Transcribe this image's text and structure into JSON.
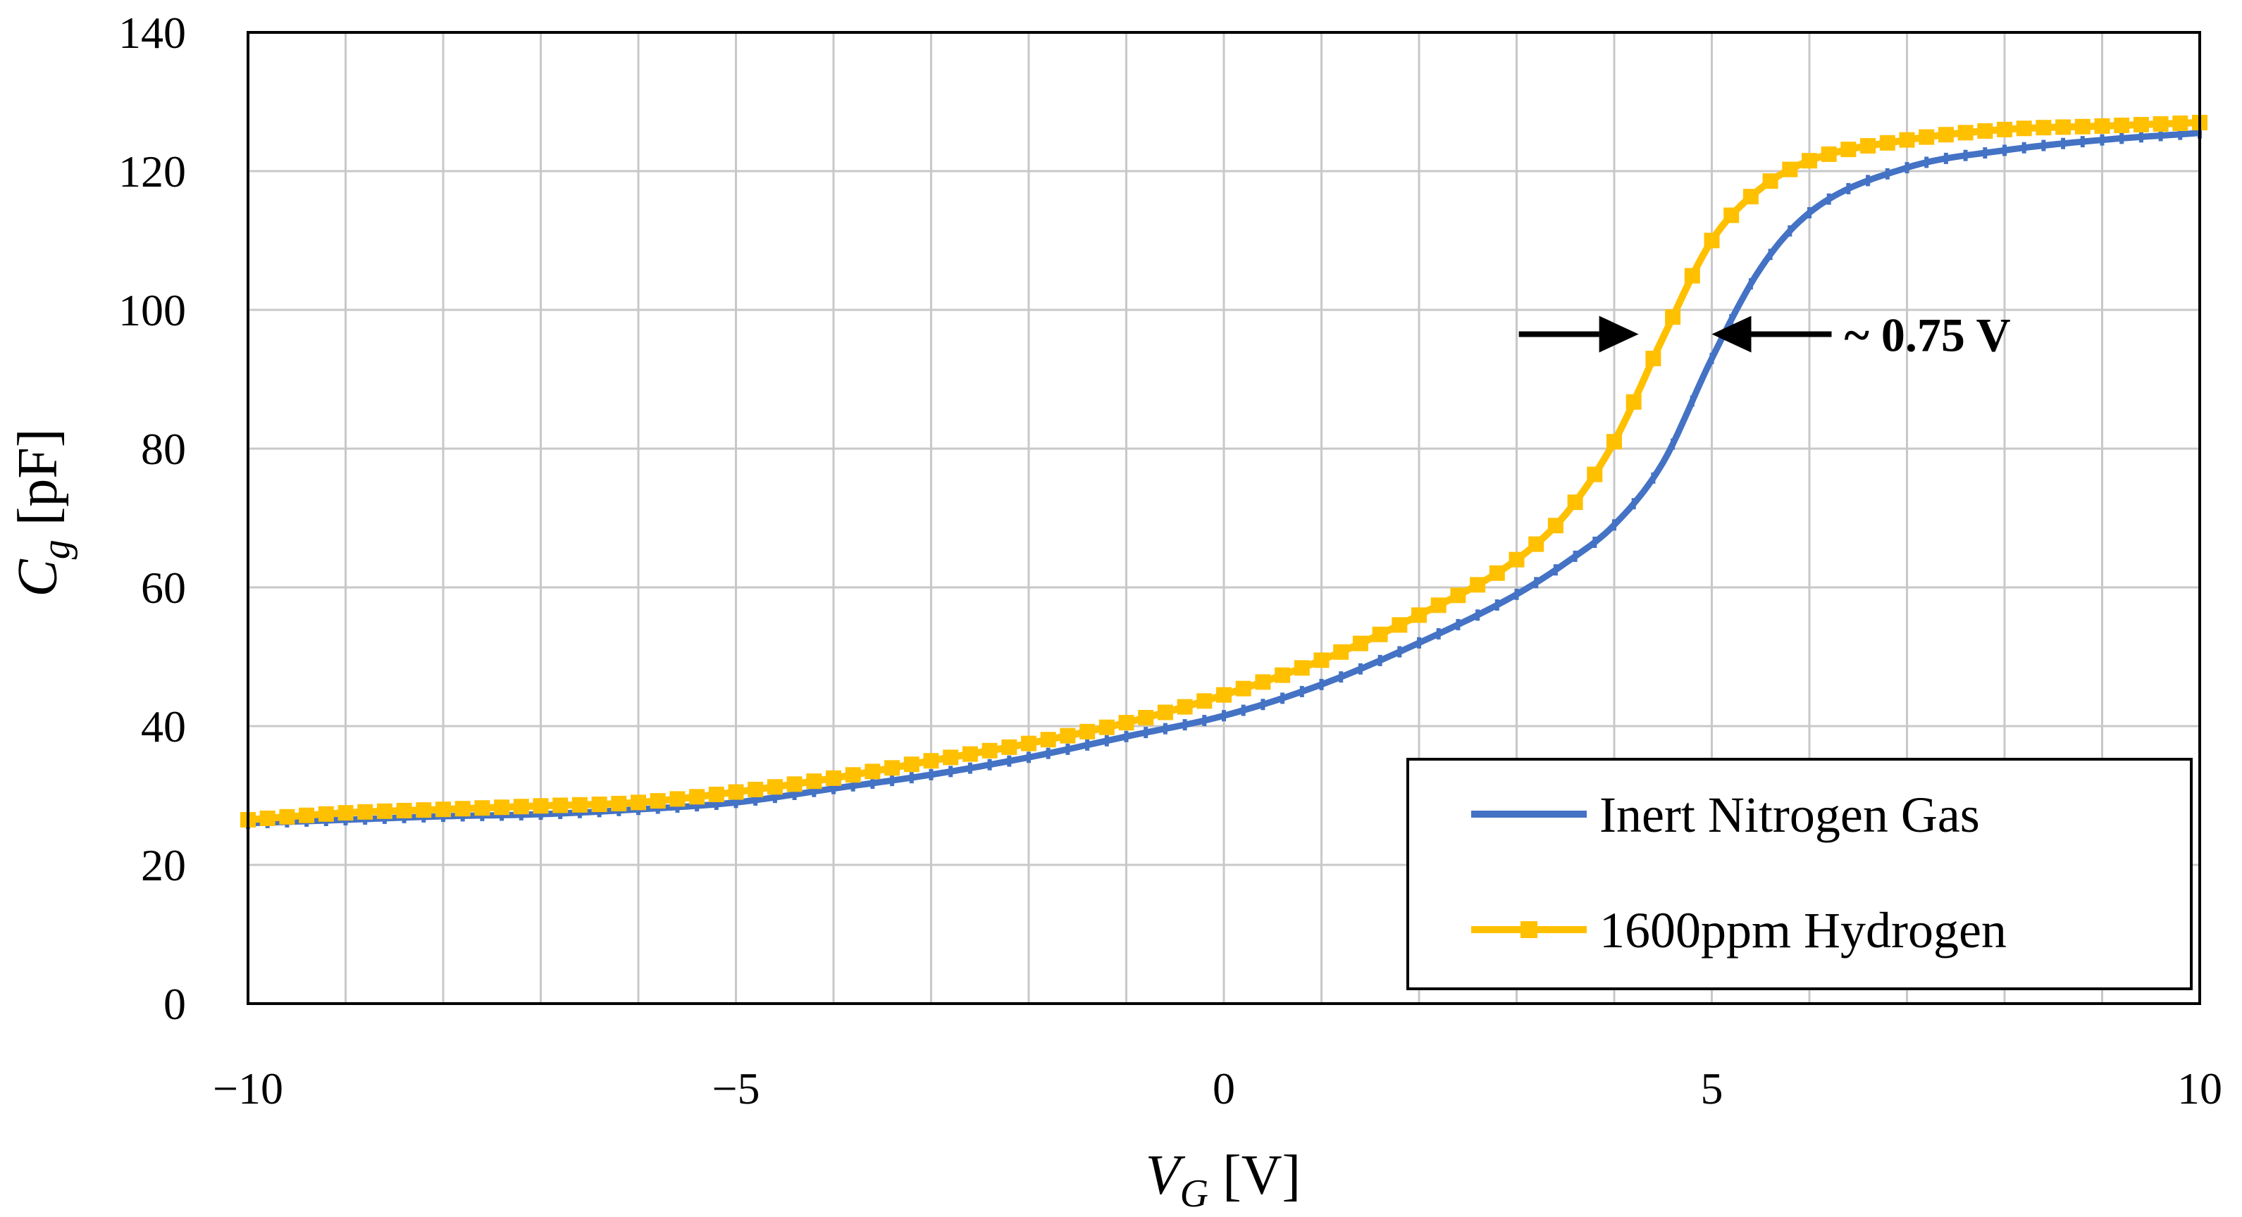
{
  "chart_data": {
    "type": "line",
    "title": "",
    "xlabel": {
      "base": "V",
      "sub": "G",
      "unit": " [V]"
    },
    "ylabel": {
      "base": "C",
      "sub": "g",
      "unit": " [pF]"
    },
    "xlim": [
      -10,
      10
    ],
    "ylim": [
      0,
      140
    ],
    "x_ticks": [
      -10,
      -5,
      0,
      5,
      10
    ],
    "x_tick_labels": [
      "−10",
      "−5",
      "0",
      "5",
      "10"
    ],
    "y_ticks": [
      0,
      20,
      40,
      60,
      80,
      100,
      120,
      140
    ],
    "y_tick_labels": [
      "0",
      "20",
      "40",
      "60",
      "80",
      "100",
      "120",
      "140"
    ],
    "x_minor_step": 1,
    "y_minor_step": 20,
    "grid": true,
    "legend_position": "bottom-right",
    "series": [
      {
        "name": "Inert Nitrogen Gas",
        "color": "#4472C4",
        "marker": "dash",
        "x": [
          -10,
          -9,
          -8,
          -7,
          -6,
          -5,
          -4,
          -3,
          -2,
          -1,
          0,
          1,
          2,
          3,
          3.5,
          4,
          4.5,
          5,
          5.5,
          6,
          7,
          8,
          9,
          10
        ],
        "y": [
          26,
          26.5,
          27,
          27.3,
          28,
          29,
          31,
          33,
          35.5,
          38.5,
          41.5,
          46,
          52,
          59,
          63.5,
          69,
          78,
          93,
          106,
          114,
          120.5,
          123,
          124.5,
          125.5
        ]
      },
      {
        "name": "1600ppm Hydrogen",
        "color": "#FFC000",
        "marker": "square",
        "x": [
          -10,
          -9,
          -8,
          -7,
          -6,
          -5,
          -4,
          -3,
          -2,
          -1,
          0,
          1,
          2,
          3,
          3.5,
          4,
          4.5,
          5,
          5.5,
          6,
          7,
          8,
          9,
          10
        ],
        "y": [
          26.5,
          27.5,
          28,
          28.5,
          29,
          30.5,
          32.5,
          35,
          37.5,
          40.5,
          44.5,
          49.5,
          56,
          64,
          70.5,
          81,
          96,
          110,
          117.5,
          121.5,
          124.5,
          126,
          126.5,
          127
        ]
      }
    ],
    "annotation": {
      "text": "~ 0.75 V",
      "x_left": 4.25,
      "x_right": 5,
      "y": 96.5,
      "font_weight": "bold"
    }
  }
}
